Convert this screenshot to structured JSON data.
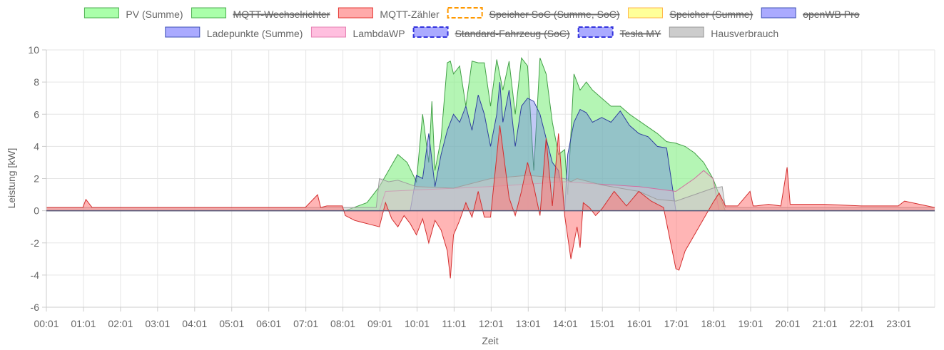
{
  "chart_data": {
    "type": "area",
    "xlabel": "Zeit",
    "ylabel": "Leistung [kW]",
    "ylim": [
      -6,
      10
    ],
    "yticks": [
      -6,
      -4,
      -2,
      0,
      2,
      4,
      6,
      8,
      10
    ],
    "xlim": [
      "00:01",
      "23:59"
    ],
    "xticks": [
      "00:01",
      "01:01",
      "02:01",
      "03:01",
      "04:01",
      "05:01",
      "06:01",
      "07:01",
      "08:01",
      "09:01",
      "10:01",
      "11:01",
      "12:01",
      "13:01",
      "14:01",
      "15:01",
      "16:01",
      "17:01",
      "18:01",
      "19:01",
      "20:01",
      "21:01",
      "22:01",
      "23:01"
    ],
    "grid": true,
    "legend_position": "top",
    "legend": [
      {
        "name": "PV (Summe)",
        "color": "#4caf50",
        "fill": "#aaffaa",
        "hidden": false
      },
      {
        "name": "MQTT-Wechselrichter",
        "color": "#4caf50",
        "fill": "#aaffaa",
        "hidden": true
      },
      {
        "name": "MQTT-Zähler",
        "color": "#e53935",
        "fill": "#ffaaaa",
        "hidden": false
      },
      {
        "name": "Speicher SoC (Summe, SoC)",
        "color": "#ff9800",
        "fill": "#ffffff",
        "hidden": true,
        "dashed": true
      },
      {
        "name": "Speicher (Summe)",
        "color": "#ffb74d",
        "fill": "#ffff99",
        "hidden": true
      },
      {
        "name": "openWB Pro",
        "color": "#3f51b5",
        "fill": "#aaaaff",
        "hidden": true
      },
      {
        "name": "Ladepunkte (Summe)",
        "color": "#3f51b5",
        "fill": "#aaaaff",
        "hidden": false
      },
      {
        "name": "LambdaWP",
        "color": "#e57fb2",
        "fill": "#ffbfdf",
        "hidden": false
      },
      {
        "name": "Standard-Fahrzeug (SoC)",
        "color": "#3333dd",
        "fill": "#aaaaff",
        "hidden": true,
        "dashed": true
      },
      {
        "name": "Tesla MY",
        "color": "#3333dd",
        "fill": "#aaaaff",
        "hidden": true,
        "dashed": true
      },
      {
        "name": "Hausverbrauch",
        "color": "#999999",
        "fill": "#cccccc",
        "hidden": false
      }
    ],
    "series": [
      {
        "name": "PV (Summe)",
        "color": "#43a047",
        "fill": "rgba(140,240,140,0.65)",
        "x": [
          "00:01",
          "08:05",
          "08:40",
          "09:00",
          "09:15",
          "09:30",
          "09:45",
          "10:00",
          "10:10",
          "10:20",
          "10:25",
          "10:30",
          "10:40",
          "10:50",
          "10:55",
          "11:00",
          "11:10",
          "11:20",
          "11:30",
          "11:40",
          "11:50",
          "12:00",
          "12:10",
          "12:20",
          "12:30",
          "12:40",
          "12:50",
          "13:00",
          "13:10",
          "13:20",
          "13:30",
          "13:40",
          "13:50",
          "14:00",
          "14:05",
          "14:15",
          "14:25",
          "14:35",
          "14:45",
          "15:00",
          "15:15",
          "15:30",
          "15:45",
          "16:00",
          "16:15",
          "16:30",
          "16:45",
          "17:00",
          "17:15",
          "17:30",
          "17:45",
          "18:00",
          "18:10",
          "18:20",
          "23:59"
        ],
        "values": [
          0,
          0,
          0.5,
          1.5,
          2.5,
          3.5,
          3.0,
          1.8,
          6.0,
          3.0,
          6.8,
          2.5,
          4.5,
          9.2,
          9.3,
          8.5,
          9.0,
          6.5,
          9.3,
          9.2,
          9.2,
          6.5,
          9.4,
          7.5,
          9.3,
          6.0,
          9.5,
          9.0,
          2.5,
          9.5,
          8.5,
          5.5,
          3.5,
          3.8,
          1.0,
          8.5,
          7.5,
          8.0,
          7.5,
          7.0,
          6.5,
          6.5,
          6.0,
          5.6,
          5.2,
          4.8,
          4.3,
          4.2,
          4.0,
          3.6,
          3.0,
          2.0,
          1.0,
          0,
          0
        ]
      },
      {
        "name": "Ladepunkte (Summe)",
        "color": "#303f9f",
        "fill": "rgba(100,120,230,0.40)",
        "x": [
          "00:01",
          "09:50",
          "10:00",
          "10:10",
          "10:20",
          "10:30",
          "10:40",
          "10:50",
          "11:00",
          "11:10",
          "11:20",
          "11:30",
          "11:40",
          "11:50",
          "12:00",
          "12:10",
          "12:15",
          "12:20",
          "12:30",
          "12:40",
          "12:50",
          "13:00",
          "13:10",
          "13:20",
          "13:30",
          "13:40",
          "13:50",
          "14:00",
          "14:05",
          "14:15",
          "14:25",
          "14:35",
          "14:45",
          "15:00",
          "15:15",
          "15:30",
          "15:45",
          "16:00",
          "16:15",
          "16:30",
          "16:45",
          "17:00",
          "17:10",
          "17:15",
          "17:30",
          "23:59"
        ],
        "values": [
          0,
          0,
          2.2,
          2.0,
          4.8,
          1.5,
          3.5,
          5.0,
          6.0,
          5.5,
          6.5,
          5.0,
          7.2,
          6.0,
          4.0,
          6.0,
          8.0,
          5.5,
          7.5,
          4.0,
          6.5,
          7.0,
          6.8,
          6.0,
          4.5,
          3.0,
          2.5,
          0,
          3.5,
          5.5,
          6.3,
          6.1,
          5.5,
          5.8,
          5.5,
          6.2,
          5.3,
          4.8,
          4.6,
          4.0,
          3.9,
          0,
          0,
          0,
          0,
          0
        ]
      },
      {
        "name": "LambdaWP",
        "color": "#d06fa0",
        "fill": "rgba(255,190,220,0.35)",
        "x": [
          "00:01",
          "09:00",
          "09:10",
          "12:00",
          "14:00",
          "16:00",
          "17:00",
          "17:30",
          "17:45",
          "18:00",
          "18:10",
          "23:59"
        ],
        "values": [
          0,
          0,
          1.2,
          1.5,
          1.8,
          1.5,
          1.2,
          2.0,
          2.5,
          2.0,
          0,
          0
        ]
      },
      {
        "name": "Hausverbrauch",
        "color": "#9e9e9e",
        "fill": "rgba(200,200,200,0.55)",
        "x": [
          "00:01",
          "08:55",
          "09:00",
          "09:15",
          "09:30",
          "10:00",
          "11:00",
          "12:00",
          "12:30",
          "13:00",
          "13:30",
          "14:00",
          "14:10",
          "14:20",
          "15:00",
          "16:00",
          "16:30",
          "17:00",
          "17:30",
          "18:00",
          "18:15",
          "18:20",
          "23:59"
        ],
        "values": [
          0.2,
          0.2,
          2.0,
          1.8,
          1.9,
          1.5,
          1.4,
          2.0,
          2.1,
          2.2,
          2.1,
          2.0,
          1.8,
          2.0,
          1.6,
          1.2,
          0.7,
          0.6,
          1.0,
          1.4,
          1.5,
          0.2,
          0.2
        ]
      },
      {
        "name": "MQTT-Zähler",
        "color": "#d32f2f",
        "fill": "rgba(255,120,120,0.55)",
        "x": [
          "00:01",
          "00:30",
          "01:00",
          "01:05",
          "01:15",
          "02:00",
          "03:00",
          "04:00",
          "05:00",
          "06:00",
          "07:00",
          "07:20",
          "07:25",
          "07:35",
          "08:00",
          "08:05",
          "08:20",
          "08:40",
          "09:00",
          "09:10",
          "09:20",
          "09:30",
          "09:40",
          "09:50",
          "10:00",
          "10:10",
          "10:20",
          "10:30",
          "10:40",
          "10:50",
          "10:55",
          "11:00",
          "11:10",
          "11:20",
          "11:30",
          "11:40",
          "11:50",
          "12:00",
          "12:15",
          "12:30",
          "12:40",
          "12:50",
          "13:00",
          "13:10",
          "13:20",
          "13:30",
          "13:40",
          "13:50",
          "14:00",
          "14:10",
          "14:20",
          "14:25",
          "14:30",
          "14:40",
          "14:50",
          "15:00",
          "15:20",
          "15:40",
          "16:00",
          "16:20",
          "16:40",
          "17:00",
          "17:05",
          "17:15",
          "17:30",
          "17:45",
          "18:00",
          "18:10",
          "18:20",
          "18:40",
          "19:00",
          "19:05",
          "19:10",
          "19:30",
          "19:50",
          "20:00",
          "20:05",
          "20:15",
          "21:00",
          "22:00",
          "23:00",
          "23:10",
          "23:59"
        ],
        "values": [
          0.2,
          0.2,
          0.2,
          0.7,
          0.2,
          0.2,
          0.2,
          0.2,
          0.2,
          0.2,
          0.2,
          1.0,
          0.2,
          0.3,
          0.3,
          -0.3,
          -0.6,
          -0.8,
          -1.0,
          0.5,
          -0.5,
          -1.0,
          -0.3,
          -0.8,
          -1.5,
          -0.5,
          -2.0,
          -0.6,
          -1.2,
          -2.5,
          -4.2,
          -1.5,
          -0.6,
          0.5,
          -0.4,
          1.2,
          -0.4,
          -0.4,
          5.3,
          0.8,
          -0.3,
          1.2,
          3.0,
          1.5,
          -0.3,
          4.5,
          0.3,
          4.8,
          -0.3,
          -3.0,
          -1.0,
          -2.3,
          0.5,
          0.2,
          -0.3,
          0.1,
          1.2,
          0.3,
          1.2,
          0.6,
          0.2,
          -3.6,
          -3.7,
          -2.5,
          -1.5,
          -0.5,
          0.5,
          1.1,
          0.3,
          0.3,
          1.2,
          0.3,
          0.3,
          0.4,
          0.3,
          2.7,
          0.4,
          0.4,
          0.4,
          0.3,
          0.3,
          0.6,
          0.2
        ]
      }
    ]
  }
}
